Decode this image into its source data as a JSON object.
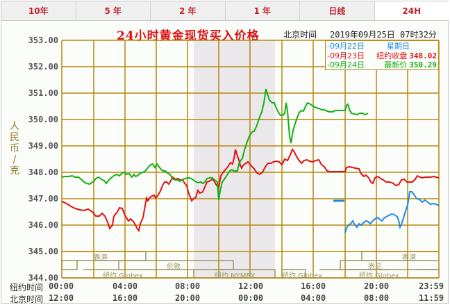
{
  "tabs": [
    {
      "label": "10年",
      "active": false
    },
    {
      "label": "5 年",
      "active": false
    },
    {
      "label": "2 年",
      "active": false
    },
    {
      "label": "1 年",
      "active": false
    },
    {
      "label": "日线",
      "active": false
    },
    {
      "label": "24H",
      "active": true
    }
  ],
  "header": {
    "title": "24小时黄金现货买入价格",
    "timezone_label": "北京时间",
    "datetime": "2019年09月25日 07时32分"
  },
  "legend": [
    {
      "date": "-09月22日",
      "label": "星期日",
      "value": "",
      "color": "#1e88e5"
    },
    {
      "date": "-09月23日",
      "label": "纽约收盘",
      "value": "348.02",
      "color": "#e01010"
    },
    {
      "date": "-09月24日",
      "label": "最新价",
      "value": "350.29",
      "color": "#10b010"
    }
  ],
  "y_unit": "人民币/克",
  "y_ticks": [
    "353.00",
    "352.00",
    "351.00",
    "350.00",
    "349.00",
    "348.00",
    "347.00",
    "346.00",
    "345.00",
    "344.00"
  ],
  "x_axis": {
    "ny_label": "纽约时间",
    "bj_label": "北京时间",
    "ny_ticks": [
      "00:00",
      "04:00",
      "08:00",
      "12:00",
      "16:00",
      "20:00",
      "23:59"
    ],
    "bj_ticks": [
      "12:00",
      "16:00",
      "20:00",
      "00:00",
      "04:00",
      "08:00",
      "11:59"
    ]
  },
  "markets": {
    "hongkong": "香港",
    "london": "伦敦",
    "ny_globex": "纽约 Globex",
    "ny_nymex": "纽约 NYMEX",
    "sydney": "悉尼"
  },
  "colors": {
    "grid": "#b8860b",
    "series_0922": "#1e88e5",
    "series_0923": "#e01010",
    "series_0924": "#10b010",
    "shade": "#ebe8ec",
    "title": "#e01010"
  },
  "chart_data": {
    "type": "line",
    "title": "24小时黄金现货买入价格",
    "xlabel": "纽约时间 / 北京时间",
    "ylabel": "人民币/克",
    "ylim": [
      344,
      353
    ],
    "x_ticks": [
      "00:00",
      "04:00",
      "08:00",
      "12:00",
      "16:00",
      "20:00",
      "23:59"
    ],
    "grid": true,
    "legend_position": "top-right",
    "series": [
      {
        "name": "09月22日 星期日",
        "x_hours_ny": [
          17.0,
          18.0,
          19.0,
          20.0,
          21.0,
          22.0,
          22.5,
          23.0,
          23.99
        ],
        "values": [
          346.0,
          346.2,
          346.4,
          346.5,
          346.1,
          347.3,
          347.2,
          346.9,
          346.8
        ]
      },
      {
        "name": "09月23日 纽约收盘 348.02",
        "x_hours_ny": [
          0,
          1,
          2,
          3,
          4,
          5,
          6,
          7,
          8,
          9,
          10,
          11,
          12,
          13,
          14,
          15,
          16,
          17,
          18,
          19,
          20,
          21,
          22,
          23,
          23.99
        ],
        "values": [
          346.9,
          346.6,
          346.4,
          346.0,
          346.6,
          346.3,
          347.6,
          347.8,
          347.4,
          347.9,
          348.2,
          348.9,
          348.5,
          348.3,
          348.4,
          348.9,
          348.3,
          348.0,
          348.2,
          348.1,
          347.8,
          347.9,
          347.8,
          347.9,
          347.85
        ]
      },
      {
        "name": "09月24日 最新价 350.29",
        "x_hours_ny": [
          0,
          1,
          2,
          3,
          4,
          5,
          6,
          7,
          8,
          9,
          10,
          10.5,
          11,
          12,
          12.5,
          13,
          14,
          14.5,
          15,
          16,
          17,
          18,
          19,
          20
        ],
        "values": [
          347.9,
          347.7,
          348.0,
          347.9,
          348.2,
          347.7,
          348.0,
          348.4,
          348.0,
          347.6,
          348.3,
          347.0,
          348.2,
          349.0,
          349.1,
          351.0,
          350.1,
          349.2,
          350.6,
          350.5,
          350.3,
          350.35,
          350.5,
          350.3
        ]
      }
    ]
  }
}
